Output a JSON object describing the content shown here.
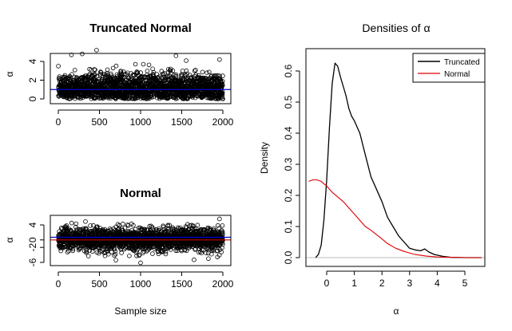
{
  "chart_data": [
    {
      "type": "scatter",
      "title": "Truncated Normal",
      "xlabel": "",
      "ylabel": "α",
      "xlim": [
        0,
        2000
      ],
      "ylim": [
        -0.3,
        5.3
      ],
      "xticks": [
        "0",
        "500",
        "1000",
        "1500",
        "2000"
      ],
      "yticks": [
        "0",
        "2",
        "4"
      ],
      "n_points": 2000,
      "distribution": "truncated normal, mean 1",
      "mean_line": {
        "y": 1.0,
        "color": "#0000cc"
      },
      "outliers": [
        [
          465,
          5.2
        ],
        [
          160,
          4.7
        ],
        [
          290,
          4.8
        ],
        [
          1430,
          4.6
        ],
        [
          1960,
          4.2
        ]
      ],
      "point_color": "#000000"
    },
    {
      "type": "scatter",
      "title": "Normal",
      "xlabel": "Sample size",
      "ylabel": "α",
      "xlim": [
        0,
        2000
      ],
      "ylim": [
        -7,
        6
      ],
      "xticks": [
        "0",
        "500",
        "1000",
        "1500",
        "2000"
      ],
      "yticks": [
        "-6",
        "-2",
        "0",
        "4"
      ],
      "n_points": 2000,
      "distribution": "normal, mean 0",
      "mean_line": {
        "y": 0.7,
        "color": "#0000cc"
      },
      "zero_line": {
        "y": 0,
        "color": "#cc0000"
      },
      "outliers": [
        [
          1960,
          5.6
        ],
        [
          1000,
          -6.1
        ],
        [
          700,
          -5.4
        ],
        [
          330,
          4.9
        ],
        [
          1650,
          -5.3
        ]
      ],
      "point_color": "#000000"
    },
    {
      "type": "line",
      "title": "Densities of α",
      "xlabel": "α",
      "ylabel": "Density",
      "xlim": [
        -0.7,
        5.7
      ],
      "ylim": [
        -0.02,
        0.65
      ],
      "xticks": [
        "0",
        "1",
        "2",
        "3",
        "4",
        "5"
      ],
      "yticks": [
        "0.0",
        "0.1",
        "0.2",
        "0.3",
        "0.4",
        "0.5",
        "0.6"
      ],
      "legend_position": "top-right",
      "baseline": {
        "y": 0,
        "color": "#bbbbbb"
      },
      "series": [
        {
          "name": "Truncated",
          "color": "#000000",
          "x": [
            -0.4,
            -0.3,
            -0.2,
            -0.1,
            0.0,
            0.1,
            0.2,
            0.3,
            0.4,
            0.5,
            0.6,
            0.7,
            0.8,
            0.9,
            1.0,
            1.2,
            1.4,
            1.6,
            1.8,
            2.0,
            2.2,
            2.4,
            2.6,
            2.8,
            3.0,
            3.2,
            3.4,
            3.55,
            3.7,
            3.9,
            4.2,
            4.5,
            5.0,
            5.6
          ],
          "y": [
            0.0,
            0.01,
            0.04,
            0.12,
            0.25,
            0.42,
            0.56,
            0.625,
            0.615,
            0.58,
            0.55,
            0.52,
            0.48,
            0.455,
            0.44,
            0.4,
            0.33,
            0.26,
            0.22,
            0.18,
            0.13,
            0.1,
            0.07,
            0.05,
            0.03,
            0.025,
            0.022,
            0.028,
            0.018,
            0.01,
            0.004,
            0.001,
            0.0,
            0.0
          ]
        },
        {
          "name": "Normal",
          "color": "#dd0000",
          "x": [
            -0.65,
            -0.5,
            -0.35,
            -0.2,
            0.0,
            0.2,
            0.4,
            0.6,
            0.8,
            1.0,
            1.2,
            1.4,
            1.6,
            1.8,
            2.0,
            2.2,
            2.5,
            2.8,
            3.2,
            3.6,
            4.0,
            4.5,
            5.0,
            5.6
          ],
          "y": [
            0.245,
            0.25,
            0.25,
            0.245,
            0.23,
            0.21,
            0.195,
            0.18,
            0.16,
            0.14,
            0.12,
            0.1,
            0.088,
            0.074,
            0.06,
            0.045,
            0.03,
            0.02,
            0.01,
            0.005,
            0.002,
            0.001,
            0.0,
            0.0
          ]
        }
      ]
    }
  ]
}
